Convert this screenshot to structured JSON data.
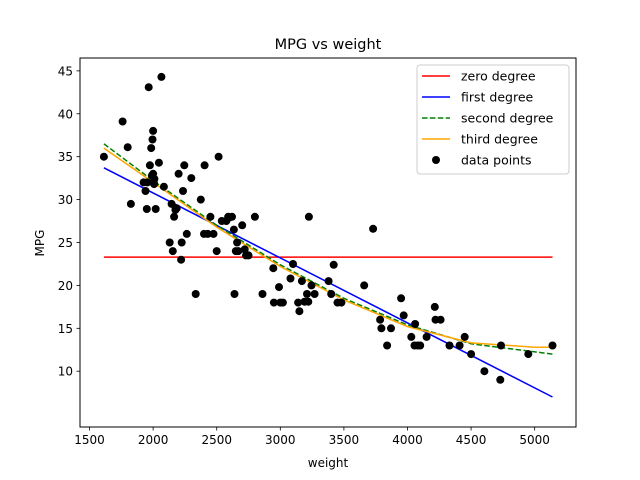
{
  "chart_data": {
    "type": "scatter",
    "title": "MPG vs weight",
    "xlabel": "weight",
    "ylabel": "MPG",
    "xlim": [
      1425,
      5325
    ],
    "ylim": [
      3.5,
      46.5
    ],
    "xticks": [
      1500,
      2000,
      2500,
      3000,
      3500,
      4000,
      4500,
      5000
    ],
    "yticks": [
      10,
      15,
      20,
      25,
      30,
      35,
      40,
      45
    ],
    "grid": false,
    "legend_position": "top-right",
    "series": [
      {
        "name": "zero degree",
        "kind": "line",
        "color": "#ff0000",
        "dash": "solid",
        "x": [
          1613,
          5140
        ],
        "y": [
          23.3,
          23.3
        ]
      },
      {
        "name": "first degree",
        "kind": "line",
        "color": "#0000ff",
        "dash": "solid",
        "x": [
          1613,
          5140
        ],
        "y": [
          33.7,
          7.0
        ]
      },
      {
        "name": "second degree",
        "kind": "line",
        "color": "#008000",
        "dash": "dashed",
        "x": [
          1613,
          2000,
          2500,
          3000,
          3500,
          4000,
          4500,
          5140
        ],
        "y": [
          36.5,
          32.2,
          27.0,
          22.4,
          18.5,
          15.4,
          13.2,
          12.0
        ]
      },
      {
        "name": "third degree",
        "kind": "line",
        "color": "#ffa500",
        "dash": "solid",
        "x": [
          1613,
          2000,
          2500,
          3000,
          3500,
          4000,
          4500,
          5000,
          5140
        ],
        "y": [
          36.0,
          32.0,
          26.8,
          22.2,
          18.3,
          15.2,
          13.3,
          12.8,
          12.8
        ]
      },
      {
        "name": "data points",
        "kind": "scatter",
        "color": "#000000",
        "x": [
          1613,
          1760,
          1800,
          1825,
          1925,
          1940,
          1950,
          1955,
          1965,
          1975,
          1985,
          1990,
          1995,
          2000,
          2000,
          2005,
          2008,
          2010,
          2020,
          2045,
          2065,
          2085,
          2130,
          2145,
          2155,
          2165,
          2175,
          2185,
          2200,
          2220,
          2225,
          2235,
          2245,
          2265,
          2300,
          2335,
          2375,
          2400,
          2405,
          2430,
          2450,
          2475,
          2500,
          2515,
          2540,
          2575,
          2590,
          2600,
          2620,
          2635,
          2640,
          2650,
          2660,
          2670,
          2700,
          2720,
          2730,
          2750,
          2800,
          2860,
          2945,
          2950,
          2990,
          3000,
          3020,
          3080,
          3100,
          3140,
          3150,
          3170,
          3190,
          3210,
          3220,
          3225,
          3245,
          3270,
          3380,
          3400,
          3420,
          3450,
          3480,
          3660,
          3730,
          3785,
          3795,
          3840,
          3870,
          3950,
          3970,
          4030,
          4055,
          4060,
          4080,
          4100,
          4150,
          4215,
          4220,
          4260,
          4330,
          4410,
          4450,
          4500,
          4605,
          4730,
          4735,
          4950,
          5140
        ],
        "y": [
          35.0,
          39.1,
          36.1,
          29.5,
          32.0,
          31.0,
          28.9,
          32.0,
          43.1,
          34.0,
          36.0,
          32.8,
          37.0,
          38.0,
          33.0,
          32.0,
          31.8,
          32.4,
          28.9,
          34.3,
          44.3,
          31.5,
          25.0,
          29.5,
          24.0,
          28.0,
          28.8,
          29.0,
          33.0,
          23.0,
          25.0,
          31.0,
          34.0,
          26.0,
          32.5,
          19.0,
          30.0,
          26.0,
          34.0,
          26.0,
          28.0,
          26.0,
          24.0,
          35.0,
          27.5,
          27.5,
          28.0,
          27.9,
          28.0,
          26.5,
          19.0,
          24.0,
          25.0,
          24.0,
          27.0,
          24.2,
          23.5,
          23.5,
          28.0,
          19.0,
          22.0,
          18.0,
          19.8,
          18.0,
          18.0,
          20.8,
          22.5,
          18.0,
          17.0,
          20.5,
          18.1,
          19.0,
          18.1,
          28.0,
          20.0,
          19.0,
          20.5,
          19.0,
          22.4,
          18.0,
          18.0,
          20.0,
          26.6,
          16.0,
          15.0,
          13.0,
          15.0,
          18.5,
          16.5,
          14.0,
          13.0,
          15.5,
          13.0,
          13.0,
          14.0,
          17.5,
          16.0,
          16.0,
          13.0,
          13.0,
          14.0,
          12.0,
          10.0,
          9.0,
          13.0,
          12.0,
          13.0
        ]
      }
    ]
  }
}
